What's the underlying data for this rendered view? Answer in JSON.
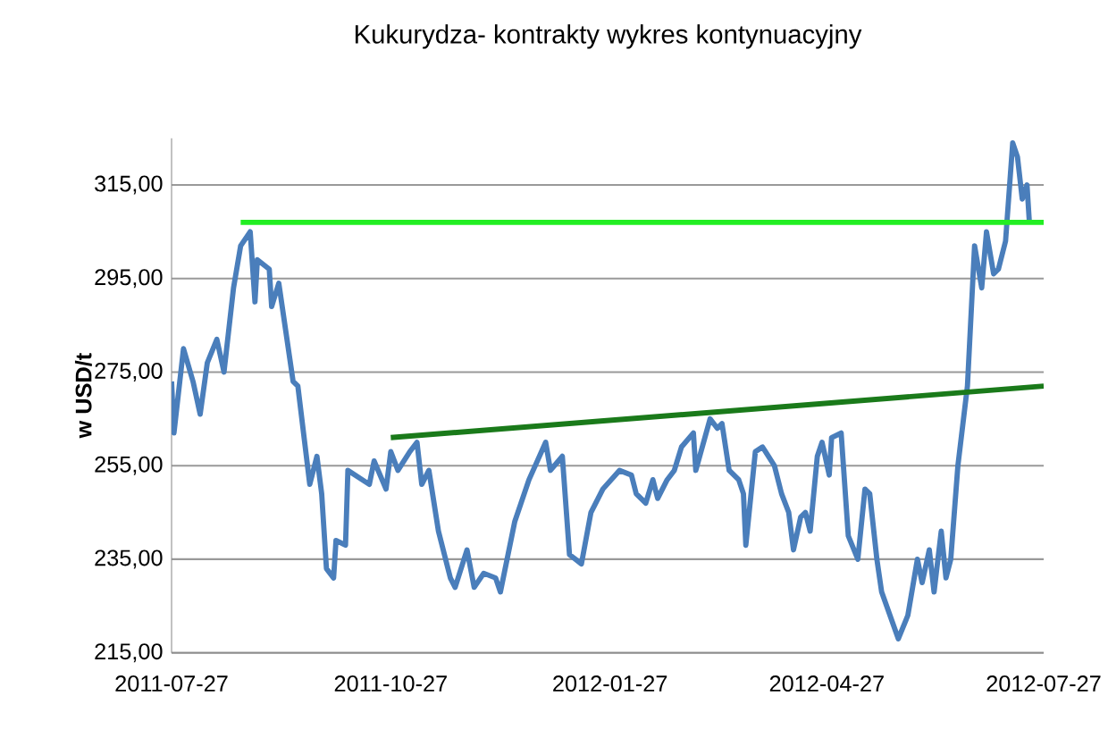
{
  "chart_data": {
    "type": "line",
    "title": "Kukurydza- kontrakty wykres kontynuacyjny",
    "ylabel": "w USD/t",
    "xlim": [
      "2011-07-27",
      "2012-07-27"
    ],
    "xticks": [
      "2011-07-27",
      "2011-10-27",
      "2012-01-27",
      "2012-04-27",
      "2012-07-27"
    ],
    "ylim": [
      215,
      325
    ],
    "yticks": [
      {
        "value": 215,
        "label": "215,00"
      },
      {
        "value": 235,
        "label": "235,00"
      },
      {
        "value": 255,
        "label": "255,00"
      },
      {
        "value": 275,
        "label": "275,00"
      },
      {
        "value": 295,
        "label": "295,00"
      },
      {
        "value": 315,
        "label": "315,00"
      }
    ],
    "grid": "y",
    "series": [
      {
        "color": "#4a7ebb",
        "x": [
          "2011-07-27",
          "2011-07-28",
          "2011-08-01",
          "2011-08-05",
          "2011-08-08",
          "2011-08-11",
          "2011-08-15",
          "2011-08-18",
          "2011-08-22",
          "2011-08-25",
          "2011-08-29",
          "2011-08-31",
          "2011-09-01",
          "2011-09-06",
          "2011-09-07",
          "2011-09-10",
          "2011-09-16",
          "2011-09-18",
          "2011-09-23",
          "2011-09-26",
          "2011-09-28",
          "2011-09-30",
          "2011-10-03",
          "2011-10-04",
          "2011-10-08",
          "2011-10-09",
          "2011-10-18",
          "2011-10-20",
          "2011-10-25",
          "2011-10-27",
          "2011-10-30",
          "2011-11-04",
          "2011-11-07",
          "2011-11-09",
          "2011-11-12",
          "2011-11-16",
          "2011-11-21",
          "2011-11-23",
          "2011-11-28",
          "2011-12-01",
          "2011-12-05",
          "2011-12-10",
          "2011-12-12",
          "2011-12-18",
          "2011-12-24",
          "2011-12-31",
          "2012-01-02",
          "2012-01-07",
          "2012-01-10",
          "2012-01-15",
          "2012-01-19",
          "2012-01-24",
          "2012-01-31",
          "2012-02-05",
          "2012-02-07",
          "2012-02-11",
          "2012-02-14",
          "2012-02-16",
          "2012-02-20",
          "2012-02-23",
          "2012-02-26",
          "2012-03-02",
          "2012-03-03",
          "2012-03-09",
          "2012-03-12",
          "2012-03-14",
          "2012-03-17",
          "2012-03-21",
          "2012-03-23",
          "2012-03-24",
          "2012-03-28",
          "2012-03-31",
          "2012-04-05",
          "2012-04-08",
          "2012-04-11",
          "2012-04-13",
          "2012-04-16",
          "2012-04-18",
          "2012-04-20",
          "2012-04-23",
          "2012-04-25",
          "2012-04-28",
          "2012-04-29",
          "2012-05-03",
          "2012-05-06",
          "2012-05-10",
          "2012-05-13",
          "2012-05-15",
          "2012-05-18",
          "2012-05-20",
          "2012-05-27",
          "2012-05-31",
          "2012-06-04",
          "2012-06-06",
          "2012-06-09",
          "2012-06-11",
          "2012-06-14",
          "2012-06-16",
          "2012-06-18",
          "2012-06-21",
          "2012-06-25",
          "2012-06-28",
          "2012-07-01",
          "2012-07-03",
          "2012-07-06",
          "2012-07-08",
          "2012-07-11",
          "2012-07-14",
          "2012-07-16",
          "2012-07-18",
          "2012-07-20",
          "2012-07-21"
        ],
        "values": [
          273,
          262,
          280,
          273,
          266,
          277,
          282,
          275,
          293,
          302,
          305,
          290,
          299,
          297,
          289,
          294,
          273,
          272,
          251,
          257,
          249,
          233,
          231,
          239,
          238,
          254,
          251,
          256,
          250,
          258,
          254,
          258,
          260,
          251,
          254,
          241,
          231,
          229,
          237,
          229,
          232,
          231,
          228,
          243,
          252,
          260,
          254,
          257,
          236,
          234,
          245,
          250,
          254,
          253,
          249,
          247,
          252,
          248,
          252,
          254,
          259,
          262,
          254,
          265,
          263,
          264,
          254,
          252,
          249,
          238,
          258,
          259,
          255,
          249,
          245,
          237,
          244,
          245,
          241,
          257,
          260,
          253,
          261,
          262,
          240,
          235,
          250,
          249,
          235,
          228,
          218,
          223,
          235,
          230,
          237,
          228,
          241,
          231,
          235,
          255,
          272,
          302,
          293,
          305,
          296,
          297,
          303,
          324,
          321,
          312,
          315,
          307
        ]
      },
      {
        "type": "line",
        "color": "#22ee22",
        "x": [
          "2011-08-25",
          "2012-07-27"
        ],
        "values": [
          307,
          307
        ]
      },
      {
        "type": "line",
        "color": "#1a7a1a",
        "x": [
          "2011-10-27",
          "2012-07-27"
        ],
        "values": [
          261,
          272
        ]
      }
    ]
  }
}
